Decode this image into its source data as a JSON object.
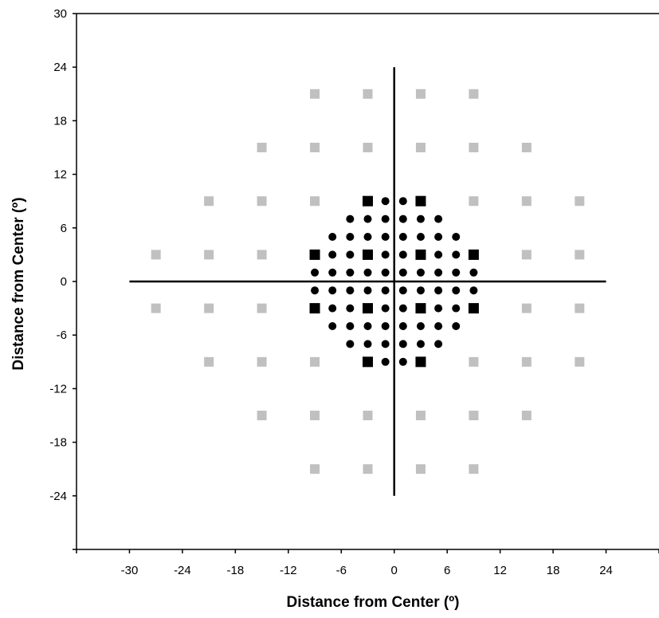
{
  "chart_data": {
    "type": "scatter",
    "xlabel": "Distance from Center (º)",
    "ylabel": "Distance from Center (º)",
    "xlim": [
      -36,
      30
    ],
    "ylim": [
      -30,
      30
    ],
    "x_ticks": [
      -30,
      -24,
      -18,
      -12,
      -6,
      0,
      6,
      12,
      18,
      24
    ],
    "y_ticks": [
      30,
      24,
      18,
      12,
      6,
      0,
      -6,
      -12,
      -18,
      -24
    ],
    "grid": false,
    "reference_lines": [
      {
        "x1": -30,
        "y1": 0,
        "x2": 24,
        "y2": 0
      },
      {
        "x1": 0,
        "y1": -24,
        "x2": 0,
        "y2": 24
      }
    ],
    "series": [
      {
        "marker": "square",
        "color": "#c0c0c0",
        "points": [
          [
            -9,
            21
          ],
          [
            -3,
            21
          ],
          [
            3,
            21
          ],
          [
            9,
            21
          ],
          [
            -15,
            15
          ],
          [
            -9,
            15
          ],
          [
            -3,
            15
          ],
          [
            3,
            15
          ],
          [
            9,
            15
          ],
          [
            15,
            15
          ],
          [
            -21,
            9
          ],
          [
            -15,
            9
          ],
          [
            -9,
            9
          ],
          [
            9,
            9
          ],
          [
            15,
            9
          ],
          [
            21,
            9
          ],
          [
            -27,
            3
          ],
          [
            -21,
            3
          ],
          [
            -15,
            3
          ],
          [
            15,
            3
          ],
          [
            21,
            3
          ],
          [
            -27,
            -3
          ],
          [
            -21,
            -3
          ],
          [
            -15,
            -3
          ],
          [
            15,
            -3
          ],
          [
            21,
            -3
          ],
          [
            -21,
            -9
          ],
          [
            -15,
            -9
          ],
          [
            -9,
            -9
          ],
          [
            9,
            -9
          ],
          [
            15,
            -9
          ],
          [
            21,
            -9
          ],
          [
            -15,
            -15
          ],
          [
            -9,
            -15
          ],
          [
            -3,
            -15
          ],
          [
            3,
            -15
          ],
          [
            9,
            -15
          ],
          [
            15,
            -15
          ],
          [
            -9,
            -21
          ],
          [
            -3,
            -21
          ],
          [
            3,
            -21
          ],
          [
            9,
            -21
          ]
        ]
      },
      {
        "marker": "square",
        "color": "#000000",
        "points": [
          [
            -3,
            9
          ],
          [
            3,
            9
          ],
          [
            -9,
            3
          ],
          [
            -3,
            3
          ],
          [
            3,
            3
          ],
          [
            9,
            3
          ],
          [
            -9,
            -3
          ],
          [
            -3,
            -3
          ],
          [
            3,
            -3
          ],
          [
            9,
            -3
          ],
          [
            -3,
            -9
          ],
          [
            3,
            -9
          ]
        ]
      },
      {
        "marker": "circle",
        "color": "#000000",
        "points": [
          [
            -1,
            9
          ],
          [
            1,
            9
          ],
          [
            -5,
            7
          ],
          [
            -3,
            7
          ],
          [
            -1,
            7
          ],
          [
            1,
            7
          ],
          [
            3,
            7
          ],
          [
            5,
            7
          ],
          [
            -7,
            5
          ],
          [
            -5,
            5
          ],
          [
            -3,
            5
          ],
          [
            -1,
            5
          ],
          [
            1,
            5
          ],
          [
            3,
            5
          ],
          [
            5,
            5
          ],
          [
            7,
            5
          ],
          [
            -7,
            3
          ],
          [
            -5,
            3
          ],
          [
            -1,
            3
          ],
          [
            1,
            3
          ],
          [
            5,
            3
          ],
          [
            7,
            3
          ],
          [
            -9,
            1
          ],
          [
            -7,
            1
          ],
          [
            -5,
            1
          ],
          [
            -3,
            1
          ],
          [
            -1,
            1
          ],
          [
            1,
            1
          ],
          [
            3,
            1
          ],
          [
            5,
            1
          ],
          [
            7,
            1
          ],
          [
            9,
            1
          ],
          [
            -9,
            -1
          ],
          [
            -7,
            -1
          ],
          [
            -5,
            -1
          ],
          [
            -3,
            -1
          ],
          [
            -1,
            -1
          ],
          [
            1,
            -1
          ],
          [
            3,
            -1
          ],
          [
            5,
            -1
          ],
          [
            7,
            -1
          ],
          [
            9,
            -1
          ],
          [
            -7,
            -3
          ],
          [
            -5,
            -3
          ],
          [
            -1,
            -3
          ],
          [
            1,
            -3
          ],
          [
            5,
            -3
          ],
          [
            7,
            -3
          ],
          [
            -7,
            -5
          ],
          [
            -5,
            -5
          ],
          [
            -3,
            -5
          ],
          [
            -1,
            -5
          ],
          [
            1,
            -5
          ],
          [
            3,
            -5
          ],
          [
            5,
            -5
          ],
          [
            7,
            -5
          ],
          [
            -5,
            -7
          ],
          [
            -3,
            -7
          ],
          [
            -1,
            -7
          ],
          [
            1,
            -7
          ],
          [
            3,
            -7
          ],
          [
            5,
            -7
          ],
          [
            -1,
            -9
          ],
          [
            1,
            -9
          ]
        ]
      }
    ]
  }
}
